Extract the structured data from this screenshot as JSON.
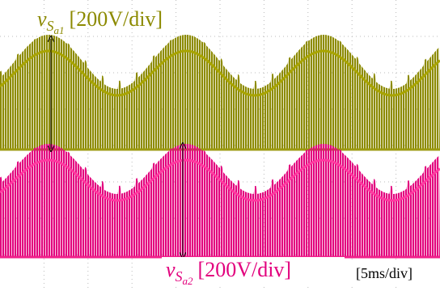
{
  "traces": [
    {
      "symbol": "v",
      "subscript": "S",
      "subsubscript": "a1",
      "scale": "[200V/div]"
    },
    {
      "symbol": "v",
      "subscript": "S",
      "subsubscript": "a2",
      "scale": "[200V/div]"
    }
  ],
  "timebase": "[5ms/div]"
}
